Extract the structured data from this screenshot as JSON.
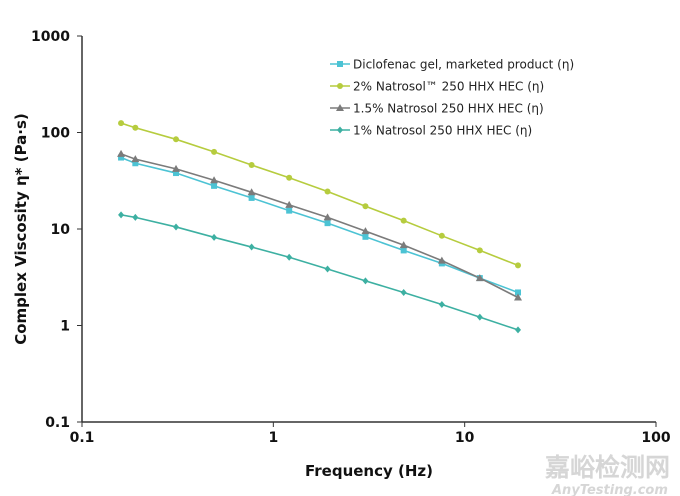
{
  "chart_data": {
    "type": "line",
    "title": "",
    "xlabel": "Frequency (Hz)",
    "ylabel": "Complex Viscosity η* (Pa·s)",
    "xscale": "log",
    "yscale": "log",
    "xlim": [
      0.1,
      100
    ],
    "ylim": [
      0.1,
      1000
    ],
    "xticks": [
      "0.1",
      "1",
      "10",
      "100"
    ],
    "yticks": [
      "0.1",
      "1",
      "10",
      "100",
      "1000"
    ],
    "grid": false,
    "legend_position": "top-right",
    "x": [
      0.16,
      0.19,
      0.31,
      0.49,
      0.77,
      1.21,
      1.92,
      3.03,
      4.8,
      7.6,
      12,
      19
    ],
    "series": [
      {
        "name": "Diclofenac gel, marketed product (η)",
        "marker": "square",
        "color": "#4cc3d4",
        "values": [
          55,
          48,
          38,
          28,
          21,
          15.5,
          11.5,
          8.3,
          6.0,
          4.4,
          3.1,
          2.2
        ]
      },
      {
        "name": "2% Natrosol™  250 HHX HEC (η)",
        "marker": "circle",
        "color": "#b6cc3e",
        "values": [
          125,
          112,
          85,
          63,
          46,
          34,
          24.5,
          17.2,
          12.2,
          8.5,
          6.0,
          4.2
        ]
      },
      {
        "name": "1.5% Natrosol 250  HHX HEC (η)",
        "marker": "triangle",
        "color": "#7b7b7b",
        "values": [
          60,
          53,
          42,
          32,
          24,
          17.8,
          13.2,
          9.5,
          6.8,
          4.7,
          3.1,
          1.95
        ]
      },
      {
        "name": "1% Natrosol 250  HHX HEC (η)",
        "marker": "diamond",
        "color": "#3db0a2",
        "values": [
          14,
          13.2,
          10.5,
          8.2,
          6.5,
          5.1,
          3.85,
          2.9,
          2.2,
          1.65,
          1.22,
          0.9
        ]
      }
    ]
  },
  "watermark": {
    "line1": "嘉峪检测网",
    "line2": "AnyTesting.com"
  }
}
